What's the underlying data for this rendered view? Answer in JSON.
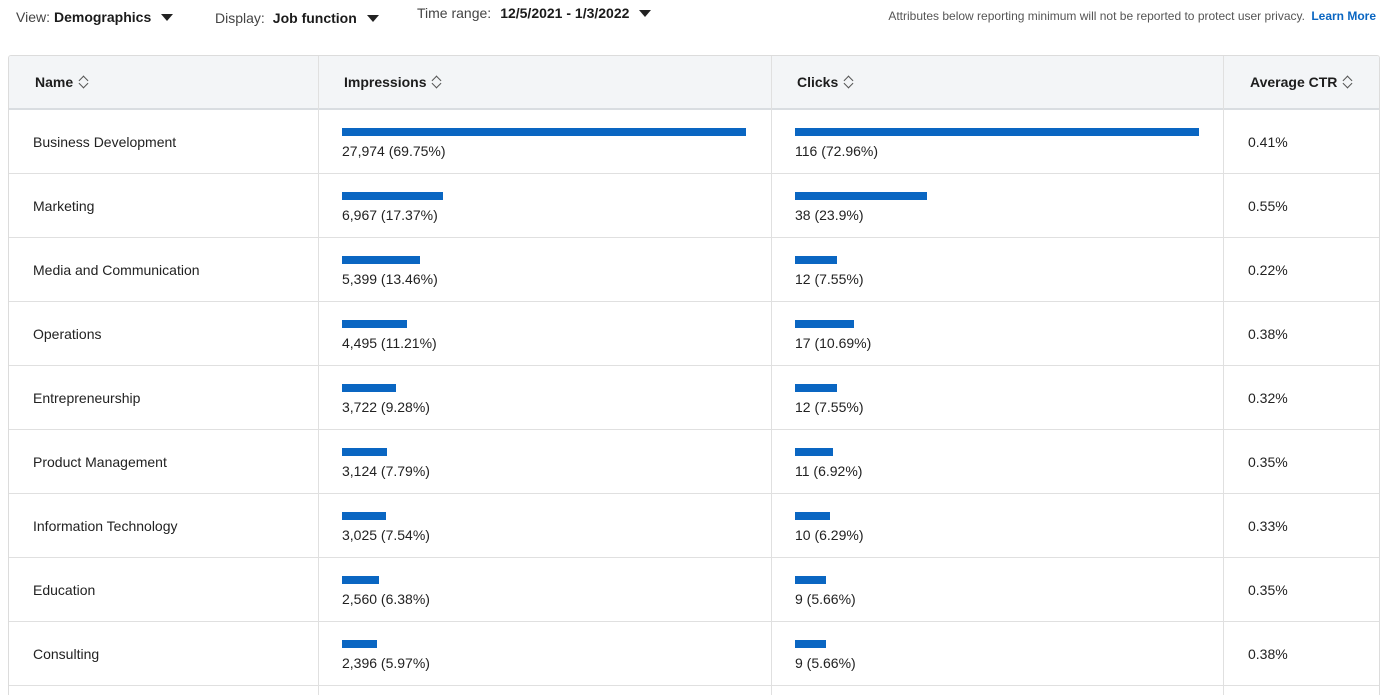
{
  "filters": {
    "view": {
      "label": "View:",
      "value": "Demographics"
    },
    "display": {
      "label": "Display:",
      "value": "Job function"
    },
    "time_range": {
      "label": "Time range:",
      "value": "12/5/2021 - 1/3/2022"
    }
  },
  "privacy_note": {
    "text": "Attributes below reporting minimum will not be reported to protect user privacy.",
    "link": "Learn More"
  },
  "colors": {
    "bar": "#0a66c2",
    "link": "#0a66c2"
  },
  "table": {
    "headers": {
      "name": "Name",
      "impressions": "Impressions",
      "clicks": "Clicks",
      "ctr": "Average CTR"
    },
    "rows": [
      {
        "name": "Business Development",
        "impressions": "27,974 (69.75%)",
        "impressions_pct": 69.75,
        "clicks": "116 (72.96%)",
        "clicks_pct": 72.96,
        "ctr": "0.41%"
      },
      {
        "name": "Marketing",
        "impressions": "6,967 (17.37%)",
        "impressions_pct": 17.37,
        "clicks": "38 (23.9%)",
        "clicks_pct": 23.9,
        "ctr": "0.55%"
      },
      {
        "name": "Media and Communication",
        "impressions": "5,399 (13.46%)",
        "impressions_pct": 13.46,
        "clicks": "12 (7.55%)",
        "clicks_pct": 7.55,
        "ctr": "0.22%"
      },
      {
        "name": "Operations",
        "impressions": "4,495 (11.21%)",
        "impressions_pct": 11.21,
        "clicks": "17 (10.69%)",
        "clicks_pct": 10.69,
        "ctr": "0.38%"
      },
      {
        "name": "Entrepreneurship",
        "impressions": "3,722 (9.28%)",
        "impressions_pct": 9.28,
        "clicks": "12 (7.55%)",
        "clicks_pct": 7.55,
        "ctr": "0.32%"
      },
      {
        "name": "Product Management",
        "impressions": "3,124 (7.79%)",
        "impressions_pct": 7.79,
        "clicks": "11 (6.92%)",
        "clicks_pct": 6.92,
        "ctr": "0.35%"
      },
      {
        "name": "Information Technology",
        "impressions": "3,025 (7.54%)",
        "impressions_pct": 7.54,
        "clicks": "10 (6.29%)",
        "clicks_pct": 6.29,
        "ctr": "0.33%"
      },
      {
        "name": "Education",
        "impressions": "2,560 (6.38%)",
        "impressions_pct": 6.38,
        "clicks": "9 (5.66%)",
        "clicks_pct": 5.66,
        "ctr": "0.35%"
      },
      {
        "name": "Consulting",
        "impressions": "2,396 (5.97%)",
        "impressions_pct": 5.97,
        "clicks": "9 (5.66%)",
        "clicks_pct": 5.66,
        "ctr": "0.38%"
      }
    ]
  }
}
